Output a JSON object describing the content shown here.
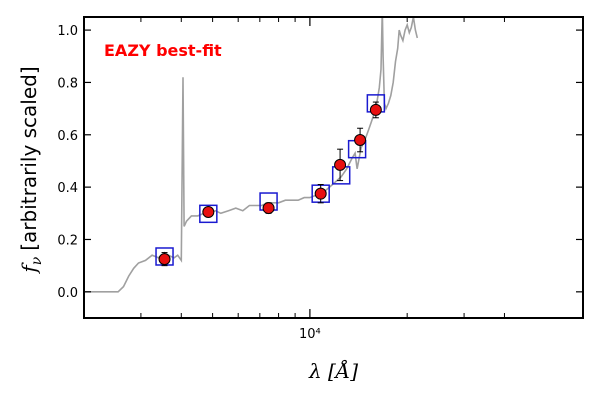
{
  "chart_data": {
    "type": "scatter",
    "annotation": "EAZY best-fit",
    "xlabel": "λ [Å]",
    "ylabel_symbol": "f",
    "ylabel_subscript": "ν",
    "ylabel_text": "[arbitrarily scaled]",
    "xscale": "log",
    "xlim": [
      2000,
      70000
    ],
    "ylim": [
      -0.1,
      1.05
    ],
    "yticks": [
      0.0,
      0.2,
      0.4,
      0.6,
      0.8,
      1.0
    ],
    "ytick_labels": [
      "0.0",
      "0.2",
      "0.4",
      "0.6",
      "0.8",
      "1.0"
    ],
    "xtick_major_label": "10⁴",
    "xtick_major": 10000,
    "xtick_minor": [
      3000,
      4000,
      5000,
      6000,
      7000,
      8000,
      9000,
      20000,
      30000,
      40000
    ],
    "colors": {
      "annotation": "#ff0000",
      "observed_fill": "#e81010",
      "observed_edge": "#000000",
      "model_box": "#1a1ad0",
      "template": "#a0a0a0"
    },
    "observed": [
      {
        "x": 3550,
        "y": 0.125,
        "err": 0.025
      },
      {
        "x": 4850,
        "y": 0.305,
        "err": 0.015
      },
      {
        "x": 7450,
        "y": 0.32,
        "err": 0.02
      },
      {
        "x": 10800,
        "y": 0.375,
        "err": 0.035
      },
      {
        "x": 12400,
        "y": 0.485,
        "err": 0.06
      },
      {
        "x": 14300,
        "y": 0.58,
        "err": 0.045
      },
      {
        "x": 16000,
        "y": 0.695,
        "err": 0.03
      }
    ],
    "model": [
      {
        "x": 3550,
        "y": 0.135
      },
      {
        "x": 4850,
        "y": 0.298
      },
      {
        "x": 7450,
        "y": 0.345
      },
      {
        "x": 10800,
        "y": 0.375
      },
      {
        "x": 12500,
        "y": 0.445
      },
      {
        "x": 14000,
        "y": 0.545
      },
      {
        "x": 16000,
        "y": 0.72
      }
    ],
    "template": [
      [
        2000,
        0.0
      ],
      [
        2550,
        0.0
      ],
      [
        2650,
        0.02
      ],
      [
        2750,
        0.06
      ],
      [
        2850,
        0.09
      ],
      [
        2950,
        0.11
      ],
      [
        3100,
        0.12
      ],
      [
        3250,
        0.14
      ],
      [
        3400,
        0.13
      ],
      [
        3550,
        0.15
      ],
      [
        3650,
        0.14
      ],
      [
        3800,
        0.13
      ],
      [
        3900,
        0.14
      ],
      [
        3950,
        0.13
      ],
      [
        4000,
        0.12
      ],
      [
        4050,
        0.82
      ],
      [
        4080,
        0.25
      ],
      [
        4150,
        0.27
      ],
      [
        4300,
        0.29
      ],
      [
        4500,
        0.29
      ],
      [
        4700,
        0.3
      ],
      [
        4900,
        0.3
      ],
      [
        5100,
        0.31
      ],
      [
        5300,
        0.3
      ],
      [
        5600,
        0.31
      ],
      [
        5900,
        0.32
      ],
      [
        6200,
        0.31
      ],
      [
        6500,
        0.33
      ],
      [
        6800,
        0.33
      ],
      [
        7100,
        0.33
      ],
      [
        7400,
        0.34
      ],
      [
        7700,
        0.34
      ],
      [
        8000,
        0.34
      ],
      [
        8400,
        0.35
      ],
      [
        8800,
        0.35
      ],
      [
        9200,
        0.35
      ],
      [
        9600,
        0.36
      ],
      [
        10000,
        0.36
      ],
      [
        10500,
        0.37
      ],
      [
        11000,
        0.38
      ],
      [
        11500,
        0.4
      ],
      [
        12000,
        0.42
      ],
      [
        12500,
        0.44
      ],
      [
        13000,
        0.47
      ],
      [
        13500,
        0.51
      ],
      [
        13800,
        0.53
      ],
      [
        14000,
        0.47
      ],
      [
        14400,
        0.55
      ],
      [
        14800,
        0.58
      ],
      [
        15200,
        0.62
      ],
      [
        15500,
        0.65
      ],
      [
        15800,
        0.68
      ],
      [
        16100,
        0.72
      ],
      [
        16400,
        0.78
      ],
      [
        16600,
        0.85
      ],
      [
        16750,
        1.08
      ],
      [
        16850,
        0.9
      ],
      [
        17000,
        0.72
      ],
      [
        17200,
        0.7
      ],
      [
        17500,
        0.72
      ],
      [
        17800,
        0.75
      ],
      [
        18100,
        0.8
      ],
      [
        18400,
        0.88
      ],
      [
        18700,
        0.93
      ],
      [
        18900,
        1.0
      ],
      [
        19100,
        0.98
      ],
      [
        19400,
        0.96
      ],
      [
        19700,
        1.0
      ],
      [
        20000,
        1.02
      ],
      [
        20300,
        0.99
      ],
      [
        20600,
        1.01
      ],
      [
        20900,
        1.05
      ],
      [
        21200,
        1.0
      ],
      [
        21500,
        0.97
      ]
    ]
  }
}
